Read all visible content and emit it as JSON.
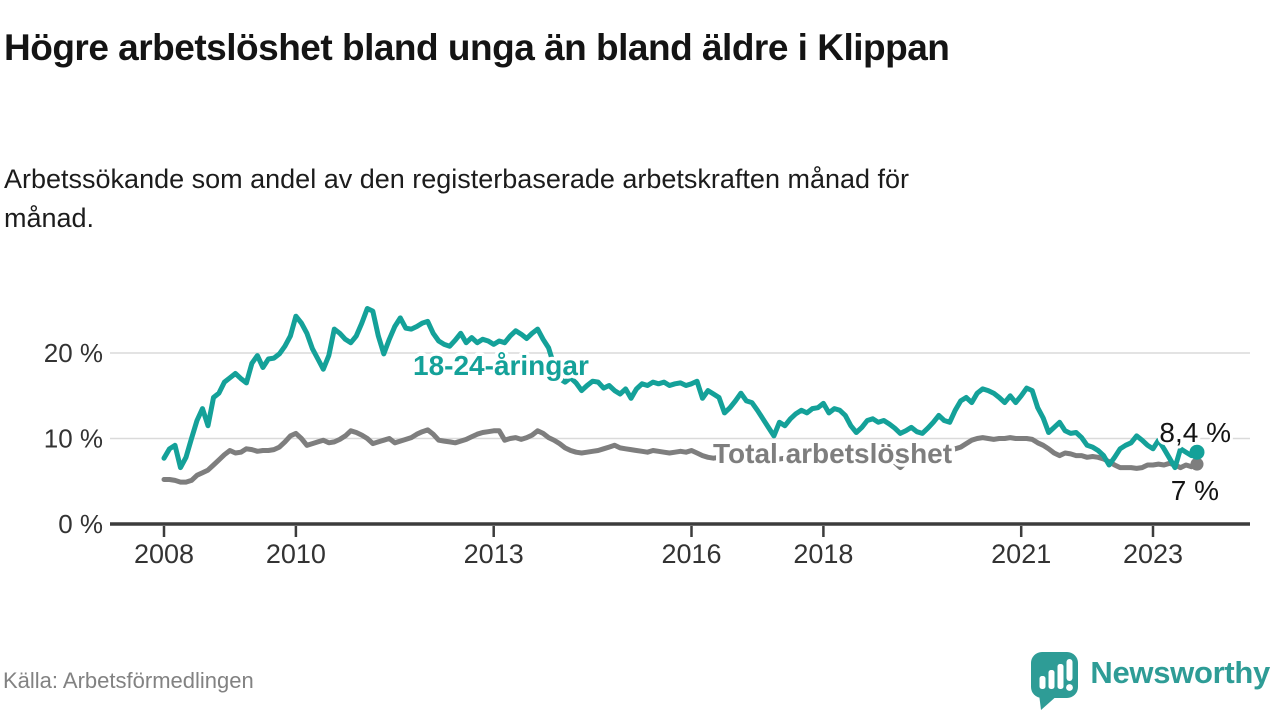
{
  "title": "Högre arbetslöshet bland unga än bland äldre i Klippan",
  "subtitle": "Arbetssökande som andel av den registerbaserade arbetskraften månad för månad.",
  "source": "Källa: Arbetsförmedlingen",
  "logo": {
    "text": "Newsworthy"
  },
  "colors": {
    "young": "#14a199",
    "total": "#7e7e7e",
    "axis": "#3c3c3c",
    "tick_text": "#333333",
    "grid": "#dadada",
    "value_text": "#141414",
    "logo": "#2e9c96"
  },
  "chart_data": {
    "type": "line",
    "unit": "%",
    "x_start": "2008-01",
    "x_end": "2023-09",
    "months_per_point": 1,
    "x_ticks": [
      2008,
      2010,
      2013,
      2016,
      2018,
      2021,
      2023
    ],
    "y_ticks": [
      {
        "value": 0,
        "label": "0 %"
      },
      {
        "value": 10,
        "label": "10 %"
      },
      {
        "value": 20,
        "label": "20 %"
      }
    ],
    "ylim": [
      0,
      26
    ],
    "grid": true,
    "series": [
      {
        "name": "Total arbetslöshet",
        "color_key": "total",
        "end_label": "7 %",
        "end_value": 7.0,
        "values": [
          5.2,
          5.2,
          5.1,
          4.9,
          4.9,
          5.1,
          5.7,
          6.0,
          6.3,
          6.9,
          7.5,
          8.1,
          8.6,
          8.3,
          8.4,
          8.8,
          8.7,
          8.5,
          8.6,
          8.6,
          8.7,
          9.0,
          9.6,
          10.3,
          10.6,
          10.0,
          9.2,
          9.4,
          9.6,
          9.8,
          9.5,
          9.6,
          9.9,
          10.3,
          10.9,
          10.7,
          10.4,
          10.0,
          9.4,
          9.6,
          9.8,
          10.0,
          9.5,
          9.7,
          9.9,
          10.1,
          10.5,
          10.8,
          11.0,
          10.5,
          9.8,
          9.7,
          9.6,
          9.5,
          9.7,
          9.9,
          10.2,
          10.5,
          10.7,
          10.8,
          10.9,
          10.9,
          9.8,
          10.0,
          10.1,
          9.9,
          10.1,
          10.4,
          10.9,
          10.6,
          10.1,
          9.8,
          9.4,
          8.9,
          8.6,
          8.4,
          8.3,
          8.4,
          8.5,
          8.6,
          8.8,
          9.0,
          9.2,
          8.9,
          8.8,
          8.7,
          8.6,
          8.5,
          8.4,
          8.6,
          8.5,
          8.4,
          8.3,
          8.4,
          8.5,
          8.4,
          8.6,
          8.3,
          8.0,
          7.8,
          7.7,
          7.8,
          8.0,
          7.9,
          7.8,
          7.7,
          7.8,
          7.9,
          7.8,
          7.7,
          7.6,
          7.5,
          7.6,
          7.7,
          7.8,
          7.9,
          8.0,
          8.0,
          8.1,
          8.2,
          8.1,
          8.0,
          7.9,
          7.8,
          7.7,
          7.6,
          7.5,
          7.6,
          7.7,
          7.8,
          7.9,
          8.0,
          7.8,
          7.2,
          6.6,
          7.2,
          7.8,
          8.0,
          8.1,
          8.2,
          8.3,
          8.4,
          8.5,
          8.6,
          8.8,
          9.0,
          9.4,
          9.8,
          10.0,
          10.1,
          10.0,
          9.9,
          10.0,
          10.0,
          10.1,
          10.0,
          10.0,
          10.0,
          9.9,
          9.5,
          9.2,
          8.8,
          8.3,
          8.0,
          8.3,
          8.2,
          8.0,
          8.0,
          7.8,
          7.9,
          7.8,
          7.6,
          7.3,
          6.9,
          6.6,
          6.6,
          6.6,
          6.5,
          6.6,
          6.9,
          6.9,
          7.0,
          6.9,
          7.1,
          6.9,
          6.6,
          6.9,
          6.7,
          7.0
        ]
      },
      {
        "name": "18-24-åringar",
        "color_key": "young",
        "end_label": "8,4 %",
        "end_value": 8.4,
        "values": [
          7.7,
          8.8,
          9.2,
          6.6,
          7.8,
          10.0,
          12.1,
          13.5,
          11.5,
          14.8,
          15.3,
          16.6,
          17.1,
          17.6,
          17.0,
          16.5,
          18.8,
          19.7,
          18.3,
          19.3,
          19.4,
          19.9,
          20.8,
          22.0,
          24.3,
          23.5,
          22.3,
          20.5,
          19.3,
          18.1,
          19.7,
          22.8,
          22.3,
          21.6,
          21.2,
          22.0,
          23.5,
          25.2,
          24.9,
          22.0,
          19.9,
          21.6,
          23.1,
          24.1,
          22.9,
          22.8,
          23.1,
          23.5,
          23.7,
          22.3,
          21.4,
          21.0,
          20.8,
          21.5,
          22.3,
          21.2,
          21.8,
          21.2,
          21.6,
          21.4,
          21.0,
          21.4,
          21.2,
          22.0,
          22.6,
          22.2,
          21.7,
          22.3,
          22.8,
          21.6,
          20.6,
          18.5,
          17.0,
          16.6,
          17.1,
          16.5,
          15.6,
          16.2,
          16.7,
          16.6,
          15.9,
          16.2,
          15.6,
          15.2,
          15.8,
          14.7,
          15.8,
          16.4,
          16.2,
          16.6,
          16.4,
          16.6,
          16.2,
          16.4,
          16.5,
          16.2,
          16.4,
          16.7,
          14.7,
          15.6,
          15.2,
          14.8,
          13.0,
          13.6,
          14.4,
          15.3,
          14.4,
          14.2,
          13.3,
          12.3,
          11.3,
          10.3,
          11.9,
          11.5,
          12.3,
          12.9,
          13.3,
          13.0,
          13.5,
          13.6,
          14.1,
          13.0,
          13.5,
          13.3,
          12.7,
          11.5,
          10.7,
          11.3,
          12.1,
          12.3,
          11.9,
          12.1,
          11.7,
          11.2,
          10.6,
          10.9,
          11.3,
          10.8,
          10.6,
          11.2,
          11.9,
          12.7,
          12.1,
          11.9,
          13.3,
          14.4,
          14.8,
          14.2,
          15.3,
          15.8,
          15.6,
          15.3,
          14.8,
          14.2,
          15.0,
          14.2,
          15.0,
          15.9,
          15.6,
          13.6,
          12.4,
          10.7,
          11.3,
          11.9,
          10.9,
          10.6,
          10.7,
          10.1,
          9.2,
          9.0,
          8.6,
          8.0,
          6.9,
          7.8,
          8.8,
          9.2,
          9.5,
          10.3,
          9.8,
          9.2,
          8.8,
          9.8,
          8.8,
          7.7,
          6.6,
          8.8,
          8.4,
          8.0,
          8.4
        ]
      }
    ]
  }
}
